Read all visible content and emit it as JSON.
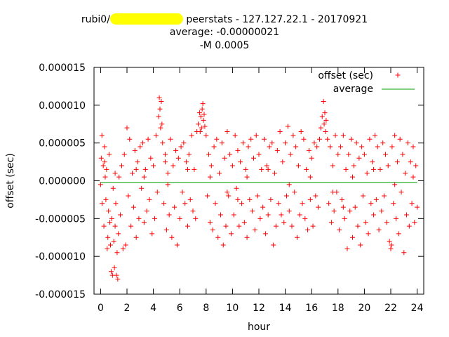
{
  "title": {
    "prefix": "rubi0/",
    "suffix": " peerstats - 127.127.22.1 - 20170921",
    "line2": "average: -0.00000021",
    "line3": "-M 0.0005"
  },
  "chart_data": {
    "type": "scatter",
    "xlabel": "hour",
    "ylabel": "offset (sec)",
    "xlim": [
      -0.5,
      24.5
    ],
    "ylim": [
      -1.5e-05,
      1.5e-05
    ],
    "xticks": [
      "0",
      "2",
      "4",
      "6",
      "8",
      "10",
      "12",
      "14",
      "16",
      "18",
      "20",
      "22",
      "24"
    ],
    "yticks": [
      "-0.000015",
      "-0.000010",
      "-0.000005",
      "0.000000",
      "0.000005",
      "0.000010",
      "0.000015"
    ],
    "grid": false,
    "legend_position": "top-right",
    "series": [
      {
        "name": "offset (sec)",
        "marker": "+",
        "color": "#ff0000",
        "points": [
          [
            0.0,
            -5e-07
          ],
          [
            0.05,
            3e-06
          ],
          [
            0.1,
            6e-06
          ],
          [
            0.12,
            -3e-06
          ],
          [
            0.2,
            2e-06
          ],
          [
            0.25,
            -6e-06
          ],
          [
            0.3,
            4.5e-06
          ],
          [
            0.35,
            5e-07
          ],
          [
            0.4,
            -2.5e-06
          ],
          [
            0.45,
            1.5e-06
          ],
          [
            0.5,
            -9e-06
          ],
          [
            0.55,
            -7.5e-06
          ],
          [
            0.6,
            -4e-06
          ],
          [
            0.65,
            3.5e-06
          ],
          [
            0.7,
            -5.5e-06
          ],
          [
            0.75,
            -8.5e-06
          ],
          [
            0.8,
            -1.2e-05
          ],
          [
            0.85,
            -5e-06
          ],
          [
            0.9,
            -1.25e-05
          ],
          [
            0.95,
            -1e-06
          ],
          [
            1.0,
            -8e-06
          ],
          [
            1.05,
            -1.15e-05
          ],
          [
            1.1,
            -6e-06
          ],
          [
            1.15,
            -3e-06
          ],
          [
            1.2,
            -1.25e-05
          ],
          [
            1.25,
            -9.5e-06
          ],
          [
            1.3,
            -1.3e-05
          ],
          [
            1.35,
            -7e-06
          ],
          [
            1.4,
            5e-07
          ],
          [
            1.5,
            -4.5e-06
          ],
          [
            1.6,
            2e-06
          ],
          [
            1.7,
            -9e-06
          ],
          [
            1.8,
            3.5e-06
          ],
          [
            1.9,
            -8.5e-06
          ],
          [
            2.0,
            7e-06
          ],
          [
            2.1,
            -2e-06
          ],
          [
            2.2,
            5.5e-06
          ],
          [
            2.3,
            -6e-06
          ],
          [
            2.4,
            1e-06
          ],
          [
            2.5,
            -3.5e-06
          ],
          [
            2.6,
            4e-06
          ],
          [
            2.7,
            -7.5e-06
          ],
          [
            2.8,
            2.5e-06
          ],
          [
            2.9,
            -5e-06
          ],
          [
            3.0,
            4.5e-06
          ],
          [
            3.1,
            -1e-06
          ],
          [
            3.2,
            5e-06
          ],
          [
            3.3,
            -5.5e-06
          ],
          [
            3.4,
            1.5e-06
          ],
          [
            3.5,
            -4e-06
          ],
          [
            3.6,
            5.5e-06
          ],
          [
            3.7,
            -2.5e-06
          ],
          [
            3.8,
            3e-06
          ],
          [
            3.9,
            -7e-06
          ],
          [
            4.0,
            2e-06
          ],
          [
            4.1,
            -5e-06
          ],
          [
            4.2,
            6e-06
          ],
          [
            4.3,
            -1.5e-06
          ],
          [
            4.4,
            8.5e-06
          ],
          [
            4.45,
            1.1e-05
          ],
          [
            4.5,
            9.5e-06
          ],
          [
            4.55,
            7e-06
          ],
          [
            4.6,
            1.05e-05
          ],
          [
            4.65,
            7.5e-06
          ],
          [
            4.7,
            5e-06
          ],
          [
            4.8,
            -3e-06
          ],
          [
            4.9,
            3.5e-06
          ],
          [
            5.0,
            -6.5e-06
          ],
          [
            5.1,
            1e-06
          ],
          [
            5.2,
            -4.5e-06
          ],
          [
            5.3,
            5.5e-06
          ],
          [
            5.4,
            -7.5e-06
          ],
          [
            5.5,
            2e-06
          ],
          [
            5.6,
            -3.5e-06
          ],
          [
            5.7,
            4e-06
          ],
          [
            5.8,
            -8.5e-06
          ],
          [
            5.9,
            3e-06
          ],
          [
            6.0,
            -5e-06
          ],
          [
            6.1,
            4.5e-06
          ],
          [
            6.2,
            -1.5e-06
          ],
          [
            6.3,
            5e-06
          ],
          [
            6.4,
            -3e-06
          ],
          [
            6.5,
            2.5e-06
          ],
          [
            6.6,
            -6e-06
          ],
          [
            6.7,
            3.5e-06
          ],
          [
            6.8,
            -2.5e-06
          ],
          [
            6.9,
            6e-06
          ],
          [
            7.0,
            -4e-06
          ],
          [
            7.1,
            1.5e-06
          ],
          [
            7.2,
            -5e-06
          ],
          [
            7.3,
            6.5e-06
          ],
          [
            7.4,
            7.5e-06
          ],
          [
            7.5,
            9e-06
          ],
          [
            7.55,
            6.5e-06
          ],
          [
            7.6,
            8.5e-06
          ],
          [
            7.65,
            7e-06
          ],
          [
            7.7,
            9.5e-06
          ],
          [
            7.75,
            1.02e-05
          ],
          [
            7.8,
            8e-06
          ],
          [
            7.85,
            8.8e-06
          ],
          [
            7.9,
            7.2e-06
          ],
          [
            8.0,
            6e-06
          ],
          [
            8.1,
            -2e-06
          ],
          [
            8.2,
            3.5e-06
          ],
          [
            8.3,
            -5.5e-06
          ],
          [
            8.4,
            2e-06
          ],
          [
            8.5,
            -6.5e-06
          ],
          [
            8.6,
            4.5e-06
          ],
          [
            8.7,
            -3e-06
          ],
          [
            8.8,
            5.5e-06
          ],
          [
            8.9,
            -7.5e-06
          ],
          [
            9.0,
            1e-06
          ],
          [
            9.1,
            -4.5e-06
          ],
          [
            9.2,
            5e-06
          ],
          [
            9.3,
            -8.5e-06
          ],
          [
            9.4,
            3e-06
          ],
          [
            9.5,
            -6e-06
          ],
          [
            9.6,
            6.5e-06
          ],
          [
            9.7,
            -2e-06
          ],
          [
            9.8,
            3.5e-06
          ],
          [
            9.9,
            -7e-06
          ],
          [
            10.0,
            2e-06
          ],
          [
            10.1,
            -4.5e-06
          ],
          [
            10.2,
            6e-06
          ],
          [
            10.3,
            -1e-06
          ],
          [
            10.4,
            4e-06
          ],
          [
            10.5,
            -6e-06
          ],
          [
            10.6,
            2.5e-06
          ],
          [
            10.7,
            -3e-06
          ],
          [
            10.8,
            5e-06
          ],
          [
            10.9,
            -5.5e-06
          ],
          [
            11.0,
            1.5e-06
          ],
          [
            11.1,
            -7.5e-06
          ],
          [
            11.2,
            4.5e-06
          ],
          [
            11.3,
            -2.5e-06
          ],
          [
            11.4,
            5.5e-06
          ],
          [
            11.5,
            -4e-06
          ],
          [
            11.6,
            3e-06
          ],
          [
            11.7,
            -6.5e-06
          ],
          [
            11.8,
            6e-06
          ],
          [
            11.9,
            -2e-06
          ],
          [
            12.0,
            3.5e-06
          ],
          [
            12.1,
            -5e-06
          ],
          [
            12.2,
            1.5e-06
          ],
          [
            12.3,
            -3.5e-06
          ],
          [
            12.4,
            5.5e-06
          ],
          [
            12.5,
            -7e-06
          ],
          [
            12.6,
            2e-06
          ],
          [
            12.7,
            -4.5e-06
          ],
          [
            12.8,
            4.5e-06
          ],
          [
            12.9,
            -2.5e-06
          ],
          [
            13.0,
            5e-06
          ],
          [
            13.1,
            -8.5e-06
          ],
          [
            13.2,
            1e-06
          ],
          [
            13.3,
            -6e-06
          ],
          [
            13.4,
            4e-06
          ],
          [
            13.5,
            -3e-06
          ],
          [
            13.6,
            6.5e-06
          ],
          [
            13.7,
            -4.5e-06
          ],
          [
            13.8,
            2.5e-06
          ],
          [
            13.9,
            -5.5e-06
          ],
          [
            14.0,
            5e-06
          ],
          [
            14.1,
            -2e-06
          ],
          [
            14.2,
            7.2e-06
          ],
          [
            14.3,
            -4e-06
          ],
          [
            14.4,
            3.5e-06
          ],
          [
            14.5,
            -6e-06
          ],
          [
            14.6,
            6e-06
          ],
          [
            14.7,
            -1.5e-06
          ],
          [
            14.8,
            4.5e-06
          ],
          [
            14.9,
            -7.5e-06
          ],
          [
            15.0,
            2e-06
          ],
          [
            15.1,
            -4.5e-06
          ],
          [
            15.2,
            6.5e-06
          ],
          [
            15.3,
            -3e-06
          ],
          [
            15.4,
            5.5e-06
          ],
          [
            15.5,
            -5e-06
          ],
          [
            15.6,
            1.5e-06
          ],
          [
            15.7,
            -6.5e-06
          ],
          [
            15.8,
            4e-06
          ],
          [
            15.9,
            -2.5e-06
          ],
          [
            16.0,
            3e-06
          ],
          [
            16.1,
            -6e-06
          ],
          [
            16.2,
            5e-06
          ],
          [
            16.3,
            -2e-06
          ],
          [
            16.4,
            4.5e-06
          ],
          [
            16.5,
            -3.5e-06
          ],
          [
            16.6,
            5.5e-06
          ],
          [
            16.7,
            7e-06
          ],
          [
            16.8,
            8.5e-06
          ],
          [
            16.9,
            1.05e-05
          ],
          [
            16.95,
            7.5e-06
          ],
          [
            17.0,
            9e-06
          ],
          [
            17.05,
            6.5e-06
          ],
          [
            17.1,
            8e-06
          ],
          [
            17.2,
            5.5e-06
          ],
          [
            17.3,
            -3e-06
          ],
          [
            17.4,
            4.5e-06
          ],
          [
            17.5,
            -5.5e-06
          ],
          [
            17.6,
            2e-06
          ],
          [
            17.7,
            -4e-06
          ],
          [
            17.8,
            6e-06
          ],
          [
            17.9,
            -1.5e-06
          ],
          [
            18.0,
            3.5e-06
          ],
          [
            18.1,
            -6.5e-06
          ],
          [
            18.2,
            4.5e-06
          ],
          [
            18.3,
            -2.5e-06
          ],
          [
            18.4,
            6e-06
          ],
          [
            18.5,
            -5e-06
          ],
          [
            18.6,
            1.5e-06
          ],
          [
            18.7,
            -9e-06
          ],
          [
            18.8,
            3.5e-06
          ],
          [
            18.9,
            -4e-06
          ],
          [
            19.0,
            5.5e-06
          ],
          [
            19.1,
            -7.5e-06
          ],
          [
            19.2,
            2e-06
          ],
          [
            19.3,
            -3.5e-06
          ],
          [
            19.4,
            5e-06
          ],
          [
            19.5,
            -6e-06
          ],
          [
            19.6,
            3e-06
          ],
          [
            19.7,
            -8.5e-06
          ],
          [
            19.8,
            4.5e-06
          ],
          [
            19.9,
            -2e-06
          ],
          [
            20.0,
            3.5e-06
          ],
          [
            20.1,
            -5.5e-06
          ],
          [
            20.2,
            1e-06
          ],
          [
            20.3,
            -7e-06
          ],
          [
            20.4,
            5.5e-06
          ],
          [
            20.5,
            -3e-06
          ],
          [
            20.6,
            2.5e-06
          ],
          [
            20.7,
            -4.5e-06
          ],
          [
            20.8,
            6e-06
          ],
          [
            20.9,
            -2.5e-06
          ],
          [
            21.0,
            4.5e-06
          ],
          [
            21.1,
            -6.5e-06
          ],
          [
            21.2,
            1.5e-06
          ],
          [
            21.3,
            -4e-06
          ],
          [
            21.4,
            5e-06
          ],
          [
            21.5,
            -2e-06
          ],
          [
            21.6,
            3.5e-06
          ],
          [
            21.7,
            -5.5e-06
          ],
          [
            21.8,
            2e-06
          ],
          [
            21.9,
            -8e-06
          ],
          [
            22.0,
            -9e-06
          ],
          [
            22.05,
            -8.5e-06
          ],
          [
            22.1,
            4.5e-06
          ],
          [
            22.2,
            -3e-06
          ],
          [
            22.3,
            6e-06
          ],
          [
            22.4,
            -5e-06
          ],
          [
            22.5,
            2.5e-06
          ],
          [
            22.6,
            -7e-06
          ],
          [
            22.7,
            5.5e-06
          ],
          [
            22.8,
            -1.5e-06
          ],
          [
            22.9,
            3.5e-06
          ],
          [
            23.0,
            -9.5e-06
          ],
          [
            23.1,
            1e-06
          ],
          [
            23.2,
            -4.5e-06
          ],
          [
            23.3,
            5e-06
          ],
          [
            23.4,
            -6e-06
          ],
          [
            23.5,
            2.5e-06
          ],
          [
            23.6,
            -3e-06
          ],
          [
            23.7,
            4.5e-06
          ],
          [
            23.8,
            -5.5e-06
          ],
          [
            23.9,
            2e-06
          ],
          [
            24.0,
            -3.5e-06
          ],
          [
            0.3,
            2.5e-06
          ],
          [
            1.1,
            1e-06
          ],
          [
            2.7,
            1.5e-06
          ],
          [
            3.3,
            5e-07
          ],
          [
            5.1,
            -5e-07
          ],
          [
            6.6,
            1.5e-06
          ],
          [
            8.3,
            5e-07
          ],
          [
            9.6,
            -1.5e-06
          ],
          [
            11.1,
            5e-07
          ],
          [
            12.7,
            1.5e-06
          ],
          [
            14.3,
            -5e-07
          ],
          [
            15.9,
            5e-07
          ],
          [
            17.6,
            -1.5e-06
          ],
          [
            19.1,
            5e-07
          ],
          [
            20.7,
            1.5e-06
          ],
          [
            22.3,
            -5e-07
          ],
          [
            23.7,
            5e-07
          ],
          [
            4.9,
            2.5e-06
          ],
          [
            10.4,
            -2.5e-06
          ],
          [
            18.4,
            -3.5e-06
          ]
        ]
      },
      {
        "name": "average",
        "type": "line",
        "color": "#00a000",
        "points": [
          [
            0,
            -2.1e-07
          ],
          [
            24,
            -2.1e-07
          ]
        ]
      }
    ]
  }
}
